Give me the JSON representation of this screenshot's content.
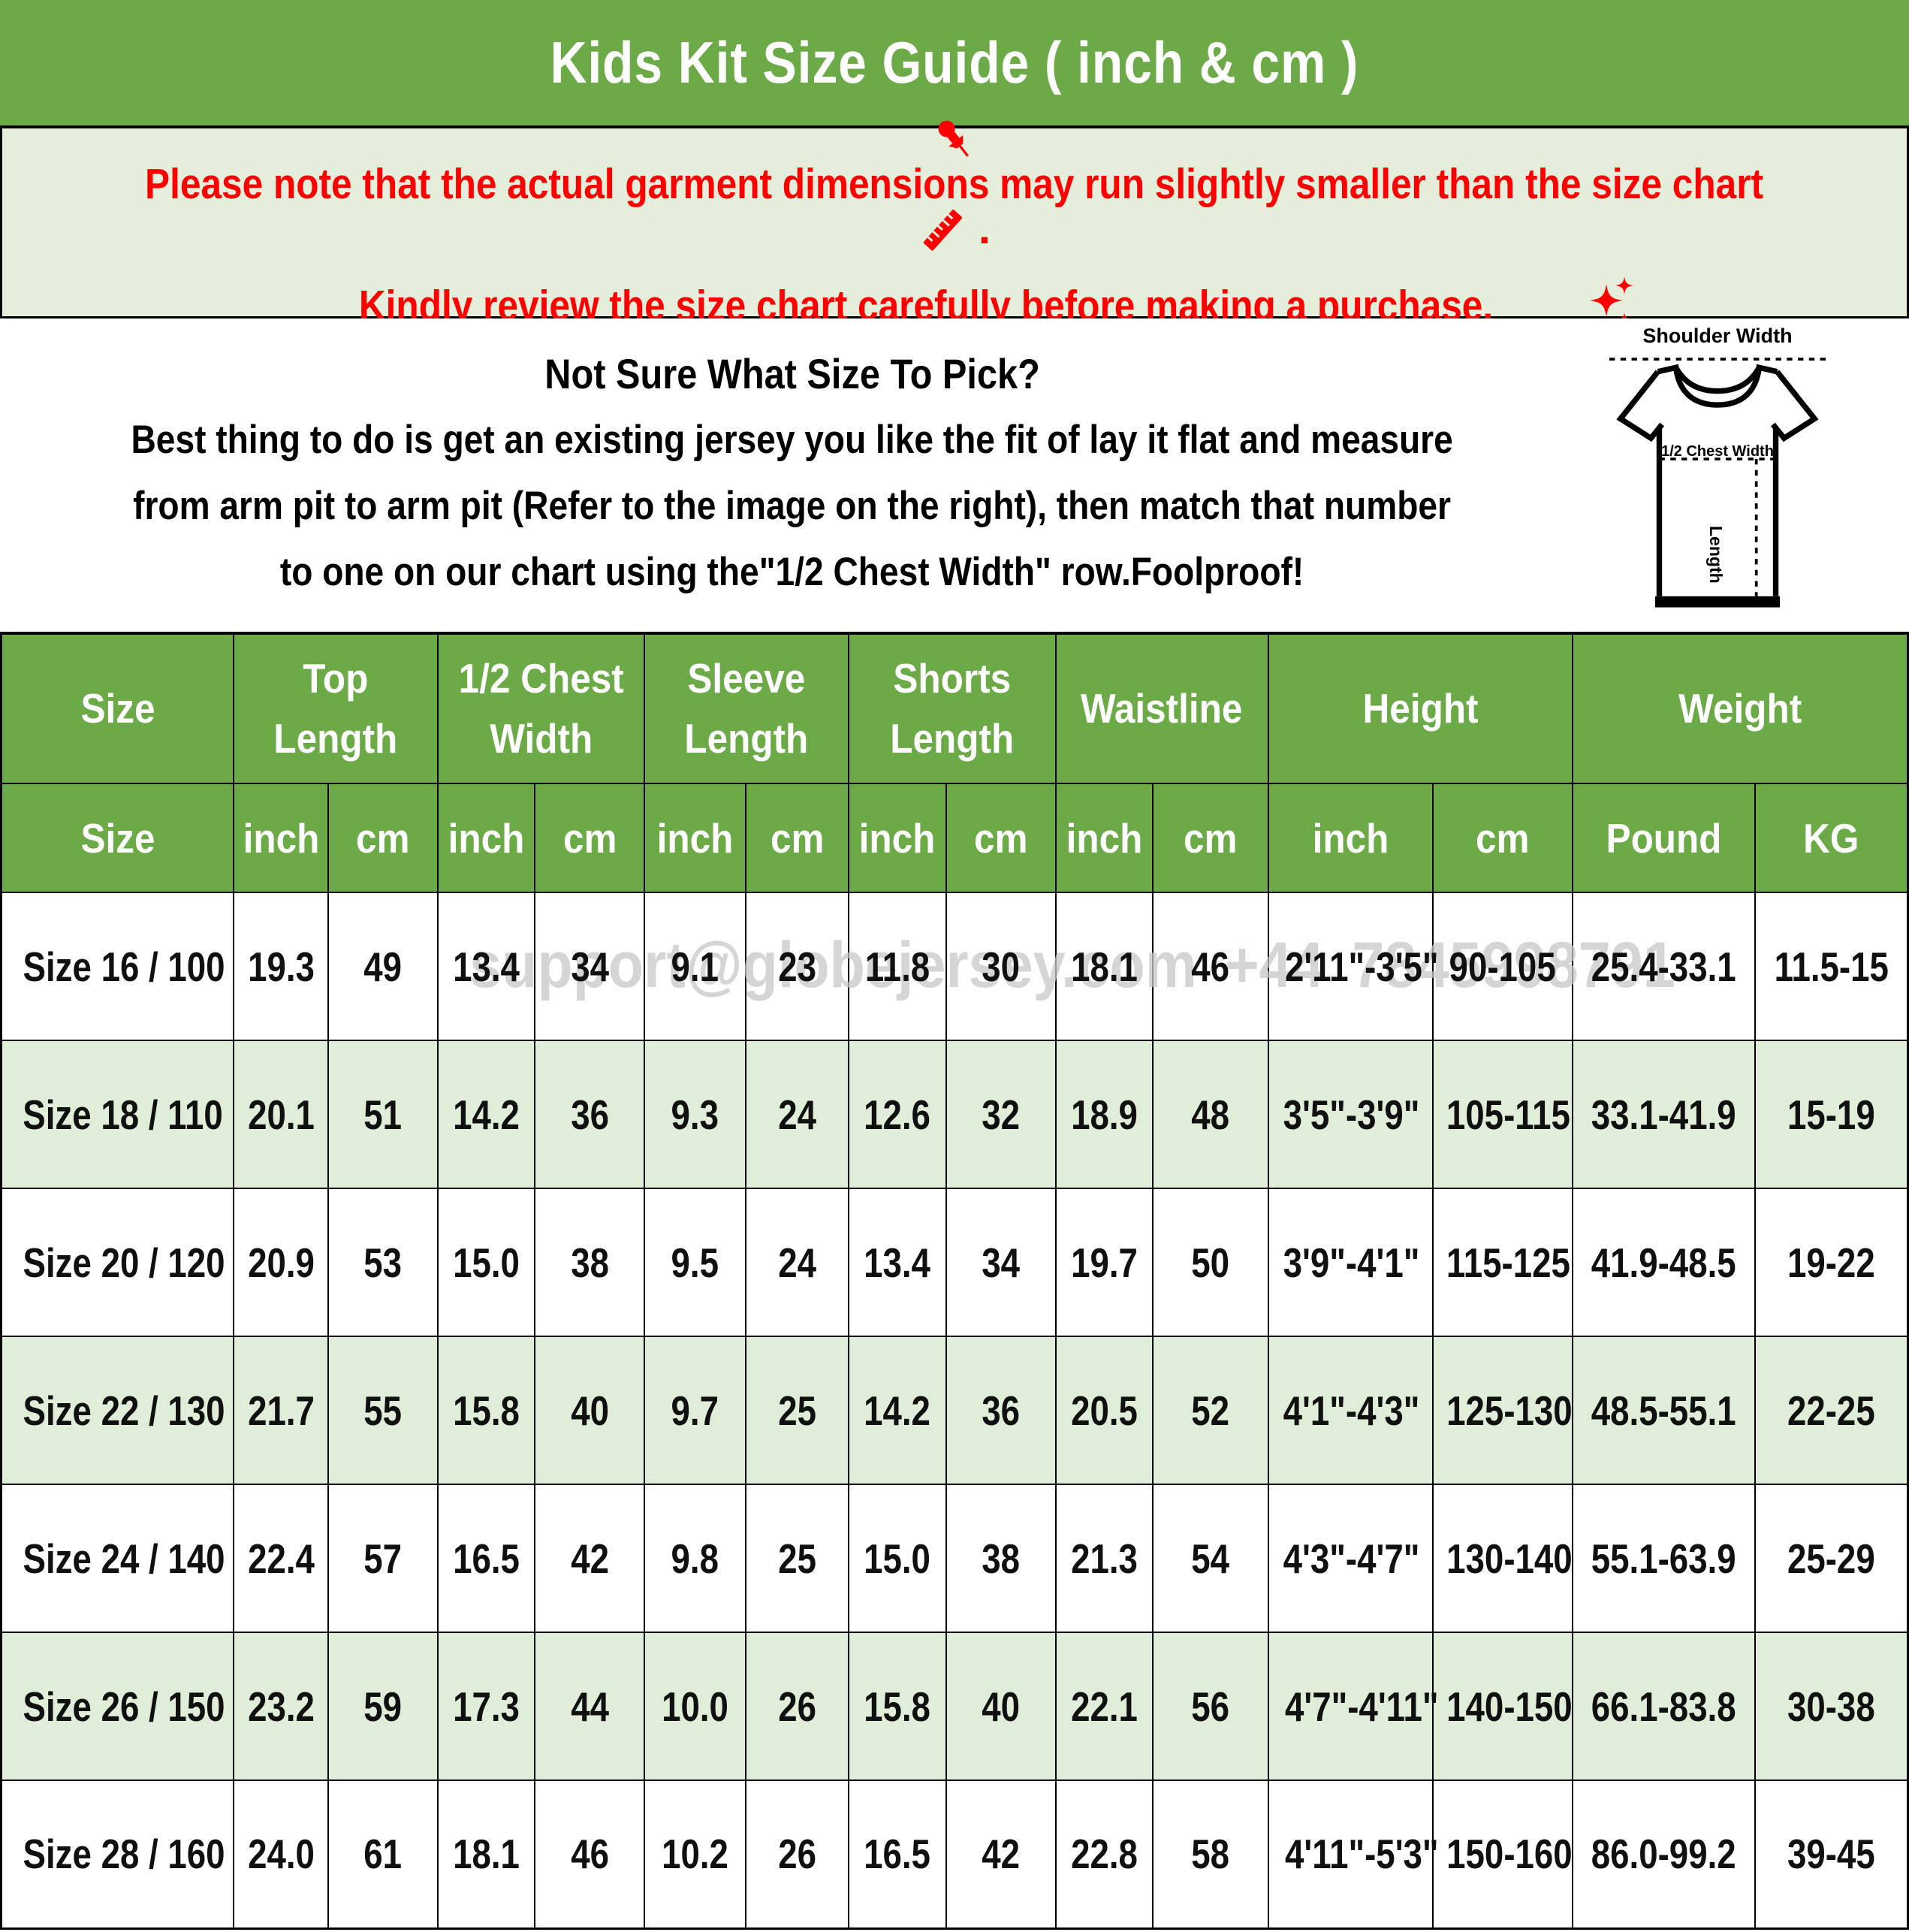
{
  "title": "Kids Kit Size Guide ( inch & cm )",
  "notice": {
    "line1": "Please note that the actual garment dimensions may run slightly smaller than the size chart",
    "line1_end": ".",
    "line2": "Kindly review the size chart carefully before making a purchase.",
    "icons": {
      "pushpin": "pushpin",
      "ruler": "ruler",
      "sparkles": "sparkles"
    },
    "text_color": "#ff0000"
  },
  "sizing_help": {
    "heading": "Not Sure What Size To Pick?",
    "line2": "Best thing to do is get an existing jersey you like the fit of lay it flat and measure",
    "line3": "from arm pit to arm pit (Refer to the image on the right), then match that number",
    "line4": "to one on our chart using the\"1/2 Chest Width\" row.Foolproof!"
  },
  "diagram": {
    "shoulder_width_label": "Shoulder Width",
    "chest_width_label": "1/2 Chest Width",
    "length_label": "Length"
  },
  "watermark": "support@globejersey.com +44 7845998791",
  "colors": {
    "header_green": "#6caa47",
    "notice_band_bg": "#e4eeda",
    "alt_row_bg": "#e0edd8",
    "notice_red": "#ff0000"
  },
  "table": {
    "group_headers": [
      {
        "label": "Size"
      },
      {
        "label": "Top Length"
      },
      {
        "label": "1/2 Chest Width"
      },
      {
        "label": "Sleeve Length"
      },
      {
        "label": "Shorts Length"
      },
      {
        "label": "Waistline"
      },
      {
        "label": "Height"
      },
      {
        "label": "Weight"
      }
    ],
    "unit_headers": [
      "Size",
      "inch",
      "cm",
      "inch",
      "cm",
      "inch",
      "cm",
      "inch",
      "cm",
      "inch",
      "cm",
      "inch",
      "cm",
      "Pound",
      "KG"
    ],
    "rows": [
      [
        "Size 16 / 100",
        "19.3",
        "49",
        "13.4",
        "34",
        "9.1",
        "23",
        "11.8",
        "30",
        "18.1",
        "46",
        "2'11\"-3'5\"",
        "90-105",
        "25.4-33.1",
        "11.5-15"
      ],
      [
        "Size 18 / 110",
        "20.1",
        "51",
        "14.2",
        "36",
        "9.3",
        "24",
        "12.6",
        "32",
        "18.9",
        "48",
        "3'5\"-3'9\"",
        "105-115",
        "33.1-41.9",
        "15-19"
      ],
      [
        "Size 20 / 120",
        "20.9",
        "53",
        "15.0",
        "38",
        "9.5",
        "24",
        "13.4",
        "34",
        "19.7",
        "50",
        "3'9\"-4'1\"",
        "115-125",
        "41.9-48.5",
        "19-22"
      ],
      [
        "Size 22 / 130",
        "21.7",
        "55",
        "15.8",
        "40",
        "9.7",
        "25",
        "14.2",
        "36",
        "20.5",
        "52",
        "4'1\"-4'3\"",
        "125-130",
        "48.5-55.1",
        "22-25"
      ],
      [
        "Size 24 / 140",
        "22.4",
        "57",
        "16.5",
        "42",
        "9.8",
        "25",
        "15.0",
        "38",
        "21.3",
        "54",
        "4'3\"-4'7\"",
        "130-140",
        "55.1-63.9",
        "25-29"
      ],
      [
        "Size 26 / 150",
        "23.2",
        "59",
        "17.3",
        "44",
        "10.0",
        "26",
        "15.8",
        "40",
        "22.1",
        "56",
        "4'7\"-4'11\"",
        "140-150",
        "66.1-83.8",
        "30-38"
      ],
      [
        "Size 28 / 160",
        "24.0",
        "61",
        "18.1",
        "46",
        "10.2",
        "26",
        "16.5",
        "42",
        "22.8",
        "58",
        "4'11\"-5'3\"",
        "150-160",
        "86.0-99.2",
        "39-45"
      ]
    ]
  }
}
